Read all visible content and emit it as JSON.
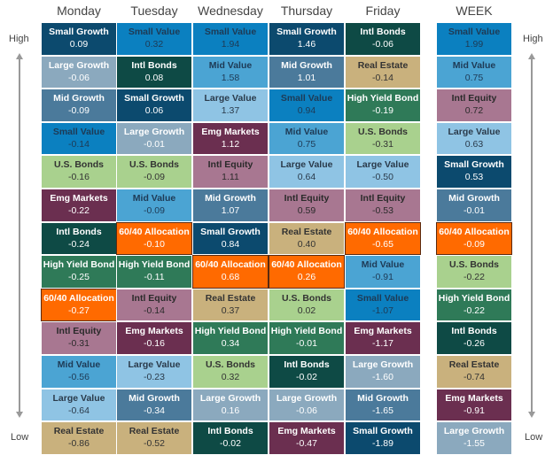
{
  "chart_data": {
    "type": "table",
    "axis_labels": {
      "high": "High",
      "low": "Low"
    },
    "category_colors": {
      "Small Growth": {
        "bg": "#0c4a6e",
        "fg": "#ffffff"
      },
      "Small Value": {
        "bg": "#0b80c0",
        "fg": "#1e3a55"
      },
      "Mid Value": {
        "bg": "#4ba4d3",
        "fg": "#1e3a55"
      },
      "Large Value": {
        "bg": "#8fc4e4",
        "fg": "#2a3a4a"
      },
      "Large Growth": {
        "bg": "#8ba9be",
        "fg": "#ffffff"
      },
      "Mid Growth": {
        "bg": "#4b7a9b",
        "fg": "#ffffff"
      },
      "Intl Bonds": {
        "bg": "#0e4a45",
        "fg": "#ffffff"
      },
      "High Yield Bond": {
        "bg": "#2f7a58",
        "fg": "#ffffff"
      },
      "U.S. Bonds": {
        "bg": "#a9d18e",
        "fg": "#333333"
      },
      "Emg Markets": {
        "bg": "#6b2f50",
        "fg": "#ffffff"
      },
      "Intl Equity": {
        "bg": "#a87791",
        "fg": "#2a2a2a"
      },
      "Real Estate": {
        "bg": "#c9b17d",
        "fg": "#333333"
      },
      "60/40 Allocation": {
        "bg": "#ff6a00",
        "fg": "#ffffff"
      }
    },
    "columns": [
      {
        "header": "Monday",
        "cells": [
          {
            "name": "Small Growth",
            "value": "0.09"
          },
          {
            "name": "Large Growth",
            "value": "-0.06"
          },
          {
            "name": "Mid Growth",
            "value": "-0.09"
          },
          {
            "name": "Small Value",
            "value": "-0.14"
          },
          {
            "name": "U.S. Bonds",
            "value": "-0.16"
          },
          {
            "name": "Emg Markets",
            "value": "-0.22"
          },
          {
            "name": "Intl Bonds",
            "value": "-0.24"
          },
          {
            "name": "High Yield Bond",
            "value": "-0.25"
          },
          {
            "name": "60/40 Allocation",
            "value": "-0.27"
          },
          {
            "name": "Intl Equity",
            "value": "-0.31"
          },
          {
            "name": "Mid Value",
            "value": "-0.56"
          },
          {
            "name": "Large Value",
            "value": "-0.64"
          },
          {
            "name": "Real Estate",
            "value": "-0.86"
          }
        ]
      },
      {
        "header": "Tuesday",
        "cells": [
          {
            "name": "Small Value",
            "value": "0.32"
          },
          {
            "name": "Intl Bonds",
            "value": "0.08"
          },
          {
            "name": "Small Growth",
            "value": "0.06"
          },
          {
            "name": "Large Growth",
            "value": "-0.01"
          },
          {
            "name": "U.S. Bonds",
            "value": "-0.09"
          },
          {
            "name": "Mid Value",
            "value": "-0.09"
          },
          {
            "name": "60/40 Allocation",
            "value": "-0.10"
          },
          {
            "name": "High Yield Bond",
            "value": "-0.11"
          },
          {
            "name": "Intl Equity",
            "value": "-0.14"
          },
          {
            "name": "Emg Markets",
            "value": "-0.16"
          },
          {
            "name": "Large Value",
            "value": "-0.23"
          },
          {
            "name": "Mid Growth",
            "value": "-0.34"
          },
          {
            "name": "Real Estate",
            "value": "-0.52"
          }
        ]
      },
      {
        "header": "Wednesday",
        "cells": [
          {
            "name": "Small Value",
            "value": "1.94"
          },
          {
            "name": "Mid Value",
            "value": "1.58"
          },
          {
            "name": "Large Value",
            "value": "1.37"
          },
          {
            "name": "Emg Markets",
            "value": "1.12"
          },
          {
            "name": "Intl Equity",
            "value": "1.11"
          },
          {
            "name": "Mid Growth",
            "value": "1.07"
          },
          {
            "name": "Small Growth",
            "value": "0.84"
          },
          {
            "name": "60/40 Allocation",
            "value": "0.68"
          },
          {
            "name": "Real Estate",
            "value": "0.37"
          },
          {
            "name": "High Yield Bond",
            "value": "0.34"
          },
          {
            "name": "U.S. Bonds",
            "value": "0.32"
          },
          {
            "name": "Large Growth",
            "value": "0.16"
          },
          {
            "name": "Intl Bonds",
            "value": "-0.02"
          }
        ]
      },
      {
        "header": "Thursday",
        "cells": [
          {
            "name": "Small Growth",
            "value": "1.46"
          },
          {
            "name": "Mid Growth",
            "value": "1.01"
          },
          {
            "name": "Small Value",
            "value": "0.94"
          },
          {
            "name": "Mid Value",
            "value": "0.75"
          },
          {
            "name": "Large Value",
            "value": "0.64"
          },
          {
            "name": "Intl Equity",
            "value": "0.59"
          },
          {
            "name": "Real Estate",
            "value": "0.40"
          },
          {
            "name": "60/40 Allocation",
            "value": "0.26"
          },
          {
            "name": "U.S. Bonds",
            "value": "0.02"
          },
          {
            "name": "High Yield Bond",
            "value": "-0.01"
          },
          {
            "name": "Intl Bonds",
            "value": "-0.02"
          },
          {
            "name": "Large Growth",
            "value": "-0.06"
          },
          {
            "name": "Emg Markets",
            "value": "-0.47"
          }
        ]
      },
      {
        "header": "Friday",
        "cells": [
          {
            "name": "Intl Bonds",
            "value": "-0.06"
          },
          {
            "name": "Real Estate",
            "value": "-0.14"
          },
          {
            "name": "High Yield Bond",
            "value": "-0.19"
          },
          {
            "name": "U.S. Bonds",
            "value": "-0.31"
          },
          {
            "name": "Large Value",
            "value": "-0.50"
          },
          {
            "name": "Intl Equity",
            "value": "-0.53"
          },
          {
            "name": "60/40 Allocation",
            "value": "-0.65"
          },
          {
            "name": "Mid Value",
            "value": "-0.91"
          },
          {
            "name": "Small Value",
            "value": "-1.07"
          },
          {
            "name": "Emg Markets",
            "value": "-1.17"
          },
          {
            "name": "Large Growth",
            "value": "-1.60"
          },
          {
            "name": "Mid Growth",
            "value": "-1.65"
          },
          {
            "name": "Small Growth",
            "value": "-1.89"
          }
        ]
      },
      {
        "header": "WEEK",
        "cells": [
          {
            "name": "Small Value",
            "value": "1.99"
          },
          {
            "name": "Mid Value",
            "value": "0.75"
          },
          {
            "name": "Intl Equity",
            "value": "0.72"
          },
          {
            "name": "Large Value",
            "value": "0.63"
          },
          {
            "name": "Small Growth",
            "value": "0.53"
          },
          {
            "name": "Mid Growth",
            "value": "-0.01"
          },
          {
            "name": "60/40 Allocation",
            "value": "-0.09"
          },
          {
            "name": "U.S. Bonds",
            "value": "-0.22"
          },
          {
            "name": "High Yield Bond",
            "value": "-0.22"
          },
          {
            "name": "Intl Bonds",
            "value": "-0.26"
          },
          {
            "name": "Real Estate",
            "value": "-0.74"
          },
          {
            "name": "Emg Markets",
            "value": "-0.91"
          },
          {
            "name": "Large Growth",
            "value": "-1.55"
          }
        ]
      }
    ]
  }
}
